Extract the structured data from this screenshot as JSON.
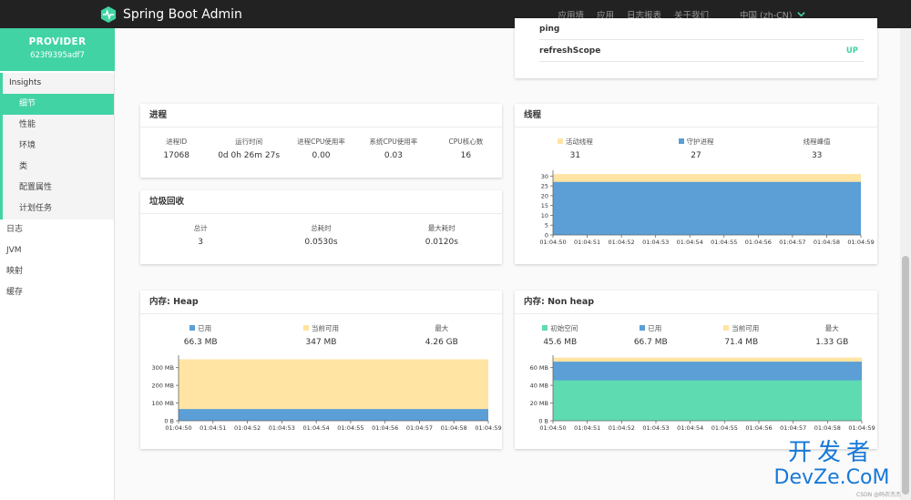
{
  "navbar": {
    "brand": "Spring Boot Admin",
    "links": [
      "应用墙",
      "应用",
      "日志报表",
      "关于我们"
    ],
    "language": "中国 (zh-CN)"
  },
  "sidebar": {
    "app_name": "PROVIDER",
    "app_id": "623f9395adf7",
    "section": "Insights",
    "sub_items": [
      "细节",
      "性能",
      "环境",
      "类",
      "配置属性",
      "计划任务"
    ],
    "items": [
      "日志",
      "JVM",
      "映射",
      "缓存"
    ]
  },
  "health": {
    "partial_label": "ping",
    "rows": [
      {
        "name": "refreshScope",
        "status": "UP"
      }
    ]
  },
  "process": {
    "title": "进程",
    "stats": [
      {
        "label": "进程ID",
        "value": "17068"
      },
      {
        "label": "运行时间",
        "value": "0d 0h 26m 27s"
      },
      {
        "label": "进程CPU使用率",
        "value": "0.00"
      },
      {
        "label": "系统CPU使用率",
        "value": "0.03"
      },
      {
        "label": "CPU核心数",
        "value": "16"
      }
    ]
  },
  "gc": {
    "title": "垃圾回收",
    "stats": [
      {
        "label": "总计",
        "value": "3"
      },
      {
        "label": "总耗时",
        "value": "0.0530s"
      },
      {
        "label": "最大耗时",
        "value": "0.0120s"
      }
    ]
  },
  "threads": {
    "title": "线程",
    "stats": [
      {
        "label": "活动线程",
        "value": "31",
        "color": "#ffe4a3"
      },
      {
        "label": "守护进程",
        "value": "27",
        "color": "#5b9fd6"
      },
      {
        "label": "线程峰值",
        "value": "33",
        "color": ""
      }
    ]
  },
  "heap": {
    "title": "内存: Heap",
    "stats": [
      {
        "label": "已用",
        "value": "66.3 MB",
        "color": "#5b9fd6"
      },
      {
        "label": "当前可用",
        "value": "347 MB",
        "color": "#ffe4a3"
      },
      {
        "label": "最大",
        "value": "4.26 GB",
        "color": ""
      }
    ]
  },
  "nonheap": {
    "title": "内存: Non heap",
    "stats": [
      {
        "label": "初始空间",
        "value": "45.6 MB",
        "color": "#5fdbb1"
      },
      {
        "label": "已用",
        "value": "66.7 MB",
        "color": "#5b9fd6"
      },
      {
        "label": "当前可用",
        "value": "71.4 MB",
        "color": "#ffe4a3"
      },
      {
        "label": "最大",
        "value": "1.33 GB",
        "color": ""
      }
    ]
  },
  "chart_data": [
    {
      "type": "area",
      "title": "线程",
      "categories": [
        "01:04:50",
        "01:04:51",
        "01:04:52",
        "01:04:53",
        "01:04:54",
        "01:04:55",
        "01:04:56",
        "01:04:57",
        "01:04:58",
        "01:04:59"
      ],
      "ylim": [
        0,
        32
      ],
      "yticks": [
        0,
        5,
        10,
        15,
        20,
        25,
        30
      ],
      "ytick_labels": [
        "0",
        "5",
        "10",
        "15",
        "20",
        "25",
        "30"
      ],
      "series": [
        {
          "name": "活动线程",
          "color": "#ffe4a3",
          "values": [
            31,
            31,
            31,
            31,
            31,
            31,
            31,
            31,
            31,
            31
          ]
        },
        {
          "name": "守护进程",
          "color": "#5b9fd6",
          "values": [
            27,
            27,
            27,
            27,
            27,
            27,
            27,
            27,
            27,
            27
          ]
        }
      ]
    },
    {
      "type": "area",
      "title": "内存: Heap",
      "categories": [
        "01:04:50",
        "01:04:51",
        "01:04:52",
        "01:04:53",
        "01:04:54",
        "01:04:55",
        "01:04:56",
        "01:04:57",
        "01:04:58",
        "01:04:59"
      ],
      "ylim": [
        0,
        360
      ],
      "yticks": [
        0,
        100,
        200,
        300
      ],
      "ytick_labels": [
        "0 B",
        "100 MB",
        "200 MB",
        "300 MB"
      ],
      "series": [
        {
          "name": "当前可用",
          "color": "#ffe4a3",
          "values": [
            347,
            347,
            347,
            347,
            347,
            347,
            347,
            347,
            347,
            347
          ]
        },
        {
          "name": "已用",
          "color": "#5b9fd6",
          "values": [
            66.3,
            66.3,
            66.3,
            66.3,
            66.3,
            66.3,
            66.3,
            66.3,
            66.3,
            66.3
          ]
        }
      ]
    },
    {
      "type": "area",
      "title": "内存: Non heap",
      "categories": [
        "01:04:50",
        "01:04:51",
        "01:04:52",
        "01:04:53",
        "01:04:54",
        "01:04:55",
        "01:04:56",
        "01:04:57",
        "01:04:58",
        "01:04:59"
      ],
      "ylim": [
        0,
        72
      ],
      "yticks": [
        0,
        20,
        40,
        60
      ],
      "ytick_labels": [
        "0 B",
        "20 MB",
        "40 MB",
        "60 MB"
      ],
      "series": [
        {
          "name": "当前可用",
          "color": "#ffe4a3",
          "values": [
            71.4,
            71.4,
            71.4,
            71.4,
            71.4,
            71.4,
            71.4,
            71.4,
            71.4,
            71.4
          ]
        },
        {
          "name": "已用",
          "color": "#5b9fd6",
          "values": [
            66.7,
            66.7,
            66.7,
            66.7,
            66.7,
            66.7,
            66.7,
            66.7,
            66.7,
            66.7
          ]
        },
        {
          "name": "初始空间",
          "color": "#5fdbb1",
          "values": [
            45.6,
            45.6,
            45.6,
            45.6,
            45.6,
            45.6,
            45.6,
            45.6,
            45.6,
            45.6
          ]
        }
      ]
    }
  ],
  "watermark": {
    "line1": "开发者",
    "line2": "DevZe.CoM",
    "small": "CSDN @码农杰杰"
  }
}
